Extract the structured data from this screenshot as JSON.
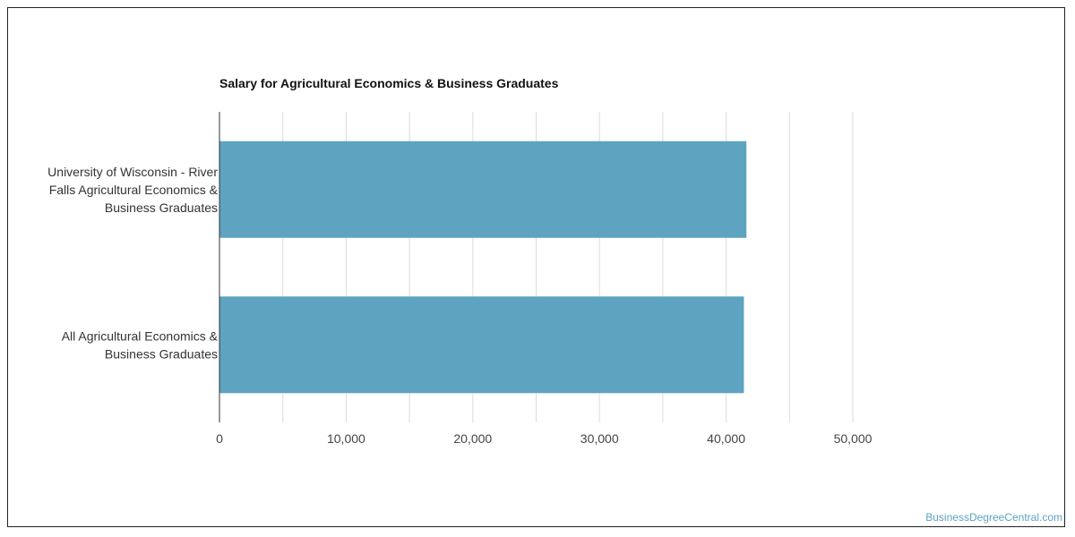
{
  "chart_data": {
    "type": "bar",
    "orientation": "horizontal",
    "title": "Salary for Agricultural Economics & Business Graduates",
    "categories": [
      [
        "University of Wisconsin - River",
        "Falls Agricultural Economics &",
        "Business Graduates"
      ],
      [
        "All Agricultural Economics &",
        "Business Graduates"
      ]
    ],
    "values": [
      41600,
      41400
    ],
    "xlim": [
      0,
      50000
    ],
    "xticks": [
      0,
      10000,
      20000,
      30000,
      40000,
      50000
    ],
    "xtick_labels": [
      "0",
      "10,000",
      "20,000",
      "30,000",
      "40,000",
      "50,000"
    ],
    "grid": true,
    "bar_color": "#5ea3c0"
  },
  "watermark": "BusinessDegreeCentral.com"
}
